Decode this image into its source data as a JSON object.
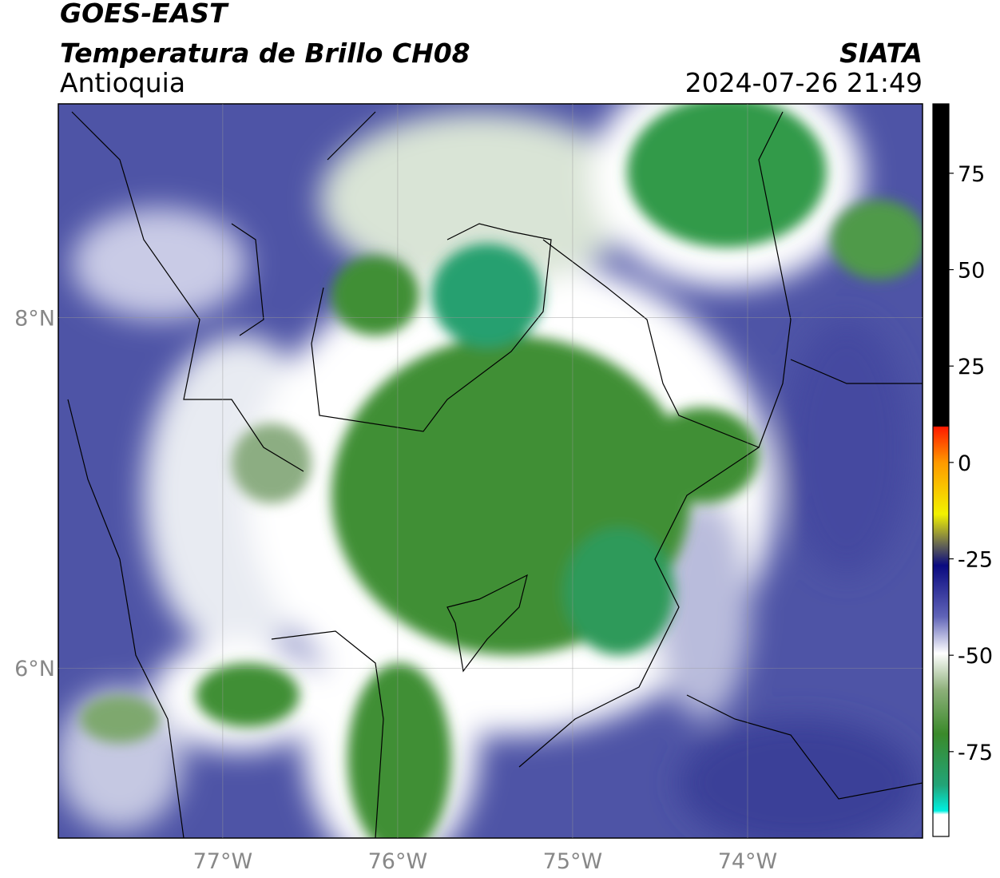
{
  "header": {
    "title": "GOES-EAST",
    "subtitle": "Temperatura de Brillo CH08",
    "region": "Antioquia",
    "source": "SIATA",
    "datetime": "2024-07-26 21:49"
  },
  "map": {
    "xlim": [
      -77.94,
      -73.0
    ],
    "ylim": [
      5.03,
      9.22
    ],
    "xticks": [
      {
        "value": -77,
        "label": "77°W"
      },
      {
        "value": -76,
        "label": "76°W"
      },
      {
        "value": -75,
        "label": "75°W"
      },
      {
        "value": -74,
        "label": "74°W"
      }
    ],
    "yticks": [
      {
        "value": 8,
        "label": "8°N"
      },
      {
        "value": 6,
        "label": "6°N"
      }
    ],
    "grid": true
  },
  "colorbar": {
    "lim": [
      -97,
      93
    ],
    "ticks": [
      75,
      50,
      25,
      0,
      -25,
      -50,
      -75
    ]
  }
}
